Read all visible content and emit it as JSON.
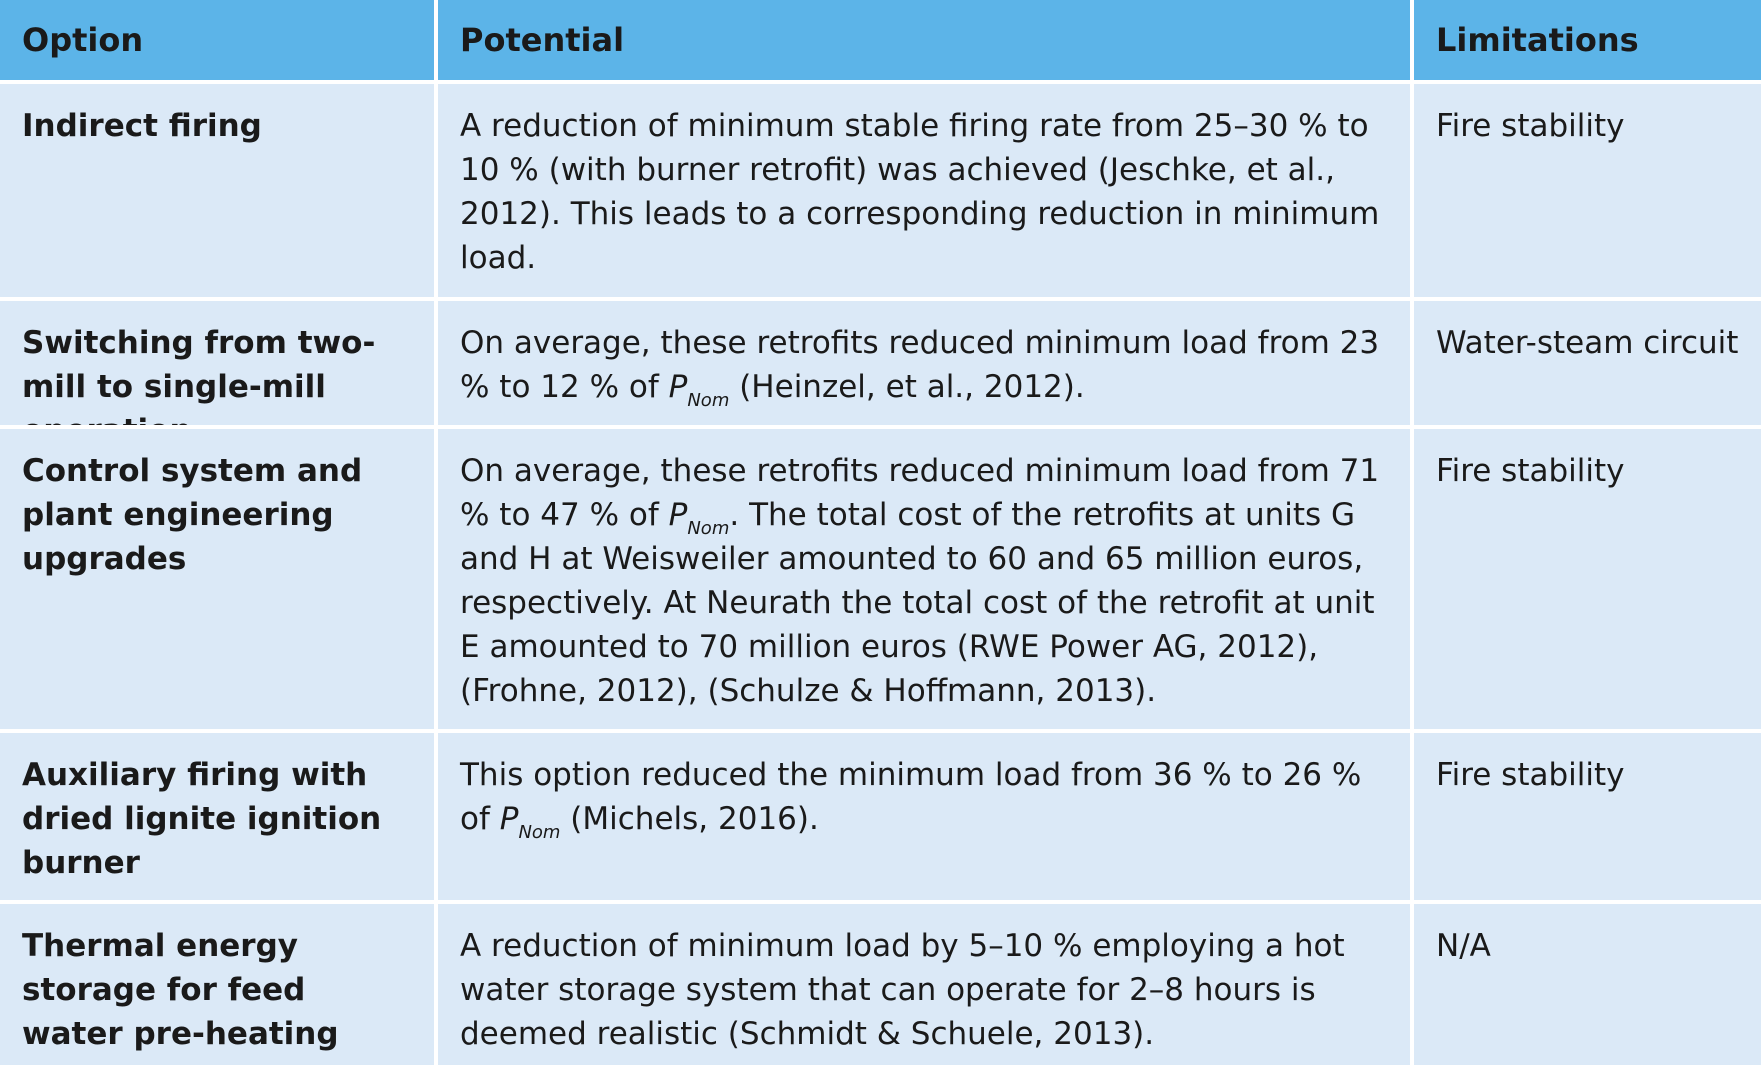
{
  "headers": {
    "option": "Option",
    "potential": "Potential",
    "limitations": "Limitations"
  },
  "rows": [
    {
      "option": "Indirect firing",
      "potential": {
        "text": "A reduction of minimum stable firing rate from 25–30 % to 10 % (with burner retrofit) was achieved (Jeschke, et al., 2012). This leads to a corresponding reduction in minimum load."
      },
      "limitations": "Fire stability"
    },
    {
      "option": "Switching from two-mill to single-mill operation",
      "potential": {
        "before": "On average, these retrofits reduced minimum load from 23 % to 12 % of ",
        "symbol": "P",
        "subscript": "Nom",
        "after": " (Heinzel, et al., 2012)."
      },
      "limitations": "Water-steam circuit"
    },
    {
      "option": "Control system and plant engineering upgrades",
      "potential": {
        "before": "On average, these retrofits reduced minimum load from 71 % to 47 % of ",
        "symbol": "P",
        "subscript": "Nom",
        "after": ". The total cost of the retrofits at units G and H at Weisweiler amounted to 60 and 65 million eu­ros, respectively. At Neurath the total cost of the retrofit at unit E amounted to 70 million euros (RWE Power AG, 2012), (Frohne, 2012), (Schulze & Hoffmann, 2013)."
      },
      "limitations": "Fire stability"
    },
    {
      "option": "Auxiliary firing with dried lignite ignition burner",
      "potential": {
        "before": "This option reduced the minimum load from 36 % to 26 % of ",
        "symbol": "P",
        "subscript": "Nom",
        "after": " (Michels, 2016)."
      },
      "limitations": "Fire stability"
    },
    {
      "option": "Thermal energy storage for feed water pre-heating",
      "potential": {
        "text": "A reduction of minimum load by 5–10 % employing a hot water storage system that can operate for 2–8 hours is deemed realistic (Schmidt & Schuele, 2013)."
      },
      "limitations": "N/A"
    }
  ],
  "colors": {
    "header_background": "#5cb4e8",
    "cell_background": "#dbe9f7",
    "grid_lines": "#ffffff",
    "text": "#1a1a1a"
  }
}
